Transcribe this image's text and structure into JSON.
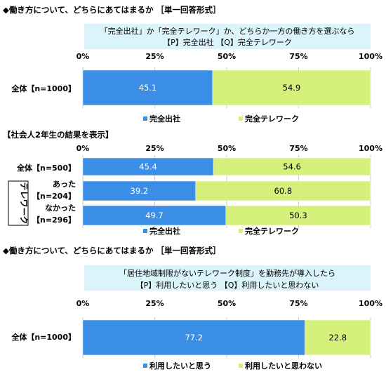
{
  "chart_data": [
    {
      "type": "bar",
      "stacked": true,
      "orientation": "horizontal",
      "heading": "◆働き方について、どちらにあてはまるか ［単一回答形式］",
      "question_lines": [
        "「完全出社」か「完全テレワーク」か、どちらか一方の働き方を選ぶなら",
        "【P】完全出社 【Q】完全テレワーク"
      ],
      "x_ticks": [
        "0%",
        "25%",
        "50%",
        "75%",
        "100%"
      ],
      "xlim": [
        0,
        100
      ],
      "categories": [
        "全体【n=1000】"
      ],
      "series": [
        {
          "name": "完全出社",
          "color": "#3a8ee6",
          "values": [
            45.1
          ]
        },
        {
          "name": "完全テレワーク",
          "color": "#d6f07c",
          "values": [
            54.9
          ]
        }
      ],
      "legend_position": "bottom"
    },
    {
      "type": "bar",
      "stacked": true,
      "orientation": "horizontal",
      "heading": "【社会人2年生の結果を表示】",
      "x_ticks": [
        "0%",
        "25%",
        "50%",
        "75%",
        "100%"
      ],
      "xlim": [
        0,
        100
      ],
      "group_label": "テレワーク",
      "categories": [
        {
          "lines": [
            "全体【n=500】"
          ]
        },
        {
          "lines": [
            "あった",
            "【n=204】"
          ]
        },
        {
          "lines": [
            "なかった",
            "【n=296】"
          ]
        }
      ],
      "series": [
        {
          "name": "完全出社",
          "color": "#3a8ee6",
          "values": [
            45.4,
            39.2,
            49.7
          ]
        },
        {
          "name": "完全テレワーク",
          "color": "#d6f07c",
          "values": [
            54.6,
            60.8,
            50.3
          ]
        }
      ],
      "legend_position": "bottom"
    },
    {
      "type": "bar",
      "stacked": true,
      "orientation": "horizontal",
      "heading": "◆働き方について、どちらにあてはまるか ［単一回答形式］",
      "question_lines": [
        "「居住地域制限がないテレワーク制度」を勤務先が導入したら",
        "【P】利用したいと思う 【Q】利用したいと思わない"
      ],
      "x_ticks": [
        "0%",
        "25%",
        "50%",
        "75%",
        "100%"
      ],
      "xlim": [
        0,
        100
      ],
      "categories": [
        "全体【n=1000】"
      ],
      "series": [
        {
          "name": "利用したいと思う",
          "color": "#3a8ee6",
          "values": [
            77.2
          ]
        },
        {
          "name": "利用したいと思わない",
          "color": "#d6f07c",
          "values": [
            22.8
          ]
        }
      ],
      "legend_position": "bottom"
    }
  ]
}
